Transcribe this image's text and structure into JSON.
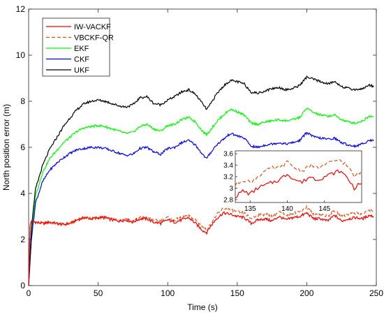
{
  "chart_data": {
    "type": "line",
    "title": "",
    "xlabel": "Time (s)",
    "ylabel": "North position error (m)",
    "xlim": [
      0,
      250
    ],
    "ylim": [
      0,
      12
    ],
    "xticks": [
      0,
      50,
      100,
      150,
      200,
      250
    ],
    "yticks": [
      0,
      2,
      4,
      6,
      8,
      10,
      12
    ],
    "grid": false,
    "legend": "top-left",
    "series": [
      {
        "name": "IW-VACKF",
        "color": "#ff0000",
        "dash": "solid",
        "x": [
          0,
          1,
          2,
          5,
          10,
          15,
          20,
          25,
          30,
          35,
          40,
          45,
          50,
          55,
          60,
          65,
          70,
          75,
          80,
          85,
          90,
          95,
          100,
          105,
          110,
          115,
          120,
          125,
          128,
          130,
          135,
          140,
          145,
          150,
          155,
          160,
          165,
          170,
          175,
          180,
          185,
          190,
          195,
          200,
          205,
          210,
          215,
          220,
          225,
          230,
          235,
          240,
          245,
          248
        ],
        "y": [
          0,
          2.6,
          2.8,
          2.75,
          2.7,
          2.75,
          2.7,
          2.65,
          2.7,
          2.85,
          2.95,
          2.9,
          2.95,
          2.95,
          2.85,
          2.8,
          2.85,
          2.75,
          2.9,
          2.9,
          2.75,
          2.7,
          2.85,
          2.75,
          2.85,
          2.95,
          2.7,
          2.4,
          2.3,
          2.5,
          2.9,
          3.15,
          3.1,
          3.0,
          2.95,
          2.7,
          2.85,
          2.9,
          2.8,
          3.0,
          2.85,
          2.95,
          3.0,
          3.15,
          2.9,
          2.9,
          2.8,
          3.05,
          2.8,
          2.9,
          2.95,
          2.9,
          3.05,
          3.0
        ]
      },
      {
        "name": "VBCKF-QR",
        "color": "#d95319",
        "dash": "dashed",
        "x": [
          0,
          1,
          2,
          5,
          10,
          15,
          20,
          25,
          30,
          35,
          40,
          45,
          50,
          55,
          60,
          65,
          70,
          75,
          80,
          85,
          90,
          95,
          100,
          105,
          110,
          115,
          120,
          125,
          128,
          130,
          135,
          140,
          145,
          150,
          155,
          160,
          165,
          170,
          175,
          180,
          185,
          190,
          195,
          200,
          205,
          210,
          215,
          220,
          225,
          230,
          235,
          240,
          245,
          248
        ],
        "y": [
          0,
          2.6,
          2.8,
          2.75,
          2.7,
          2.75,
          2.7,
          2.65,
          2.7,
          2.85,
          2.95,
          2.9,
          2.95,
          2.95,
          2.9,
          2.85,
          2.9,
          2.8,
          2.95,
          2.95,
          2.85,
          2.8,
          2.95,
          2.85,
          2.95,
          3.05,
          2.85,
          2.55,
          2.4,
          2.6,
          3.05,
          3.35,
          3.3,
          3.2,
          3.15,
          2.9,
          3.05,
          3.1,
          3.0,
          3.2,
          3.05,
          3.15,
          3.2,
          3.4,
          3.1,
          3.1,
          3.0,
          3.25,
          3.0,
          3.1,
          3.15,
          3.1,
          3.3,
          3.2
        ]
      },
      {
        "name": "EKF",
        "color": "#00ff00",
        "dash": "solid",
        "x": [
          0,
          2,
          5,
          10,
          15,
          20,
          25,
          30,
          35,
          40,
          45,
          50,
          55,
          60,
          65,
          70,
          75,
          80,
          85,
          90,
          95,
          100,
          105,
          110,
          115,
          120,
          125,
          128,
          130,
          135,
          140,
          145,
          150,
          155,
          160,
          165,
          170,
          175,
          180,
          185,
          190,
          195,
          200,
          205,
          210,
          215,
          220,
          225,
          230,
          235,
          240,
          245,
          248
        ],
        "y": [
          0,
          2.2,
          3.9,
          4.9,
          5.5,
          5.85,
          6.2,
          6.45,
          6.7,
          6.85,
          6.9,
          6.95,
          6.9,
          6.8,
          6.7,
          6.6,
          6.65,
          6.9,
          7.0,
          6.8,
          6.7,
          6.95,
          7.0,
          7.2,
          7.3,
          7.1,
          6.7,
          6.55,
          6.7,
          7.1,
          7.4,
          7.65,
          7.55,
          7.4,
          7.05,
          7.0,
          7.1,
          7.15,
          7.2,
          7.15,
          7.2,
          7.3,
          7.7,
          7.5,
          7.4,
          7.35,
          7.4,
          7.2,
          7.1,
          7.05,
          7.15,
          7.35,
          7.35
        ]
      },
      {
        "name": "CKF",
        "color": "#0000ff",
        "dash": "solid",
        "x": [
          0,
          2,
          5,
          10,
          15,
          20,
          25,
          30,
          35,
          40,
          45,
          50,
          55,
          60,
          65,
          70,
          75,
          80,
          85,
          90,
          95,
          100,
          105,
          110,
          115,
          120,
          125,
          128,
          130,
          135,
          140,
          145,
          150,
          155,
          160,
          165,
          170,
          175,
          180,
          185,
          190,
          195,
          200,
          205,
          210,
          215,
          220,
          225,
          230,
          235,
          240,
          245,
          248
        ],
        "y": [
          0,
          2.0,
          3.6,
          4.5,
          5.0,
          5.3,
          5.55,
          5.75,
          5.9,
          5.95,
          6.0,
          6.0,
          5.95,
          5.85,
          5.75,
          5.65,
          5.7,
          5.95,
          6.0,
          5.8,
          5.7,
          5.95,
          6.0,
          6.2,
          6.3,
          6.1,
          5.7,
          5.5,
          5.7,
          6.1,
          6.35,
          6.6,
          6.5,
          6.4,
          6.05,
          6.0,
          6.1,
          6.15,
          6.2,
          6.15,
          6.2,
          6.3,
          6.65,
          6.45,
          6.4,
          6.35,
          6.4,
          6.2,
          6.1,
          6.05,
          6.15,
          6.3,
          6.3
        ]
      },
      {
        "name": "UKF",
        "color": "#000000",
        "dash": "solid",
        "x": [
          0,
          2,
          5,
          10,
          15,
          20,
          25,
          30,
          35,
          40,
          45,
          50,
          55,
          60,
          65,
          70,
          75,
          80,
          85,
          90,
          95,
          100,
          105,
          110,
          115,
          120,
          125,
          128,
          130,
          135,
          140,
          145,
          150,
          155,
          160,
          165,
          170,
          175,
          180,
          185,
          190,
          195,
          200,
          205,
          210,
          215,
          220,
          225,
          230,
          235,
          240,
          245,
          248
        ],
        "y": [
          0,
          2.5,
          4.2,
          5.2,
          5.9,
          6.4,
          6.9,
          7.3,
          7.65,
          7.9,
          8.0,
          8.05,
          8.0,
          7.9,
          7.8,
          7.75,
          7.85,
          8.15,
          8.2,
          7.9,
          7.85,
          8.05,
          8.2,
          8.4,
          8.5,
          8.3,
          7.9,
          7.65,
          7.8,
          8.3,
          8.65,
          8.9,
          8.85,
          8.75,
          8.4,
          8.35,
          8.45,
          8.55,
          8.6,
          8.5,
          8.55,
          8.7,
          9.05,
          8.95,
          8.85,
          8.75,
          8.85,
          8.65,
          8.55,
          8.5,
          8.55,
          8.7,
          8.65
        ]
      }
    ],
    "inset": {
      "type": "line",
      "xlim": [
        133,
        150
      ],
      "ylim": [
        2.75,
        3.65
      ],
      "xticks": [
        135,
        140,
        145
      ],
      "yticks": [
        2.8,
        3,
        3.2,
        3.4,
        3.6
      ],
      "yticklabels": [
        "2.8",
        "3",
        "3.2",
        "3.4",
        "3.6"
      ],
      "series": [
        {
          "name": "IW-VACKF",
          "color": "#ff0000",
          "dash": "solid",
          "x": [
            133,
            134,
            135,
            136,
            137,
            138,
            139,
            140,
            141,
            142,
            143,
            144,
            145,
            146,
            147,
            148,
            149,
            150
          ],
          "y": [
            2.85,
            2.95,
            2.9,
            3.0,
            3.05,
            3.1,
            3.15,
            3.25,
            3.15,
            3.1,
            3.2,
            3.15,
            3.2,
            3.25,
            3.3,
            3.2,
            3.0,
            3.1
          ]
        },
        {
          "name": "VBCKF-QR",
          "color": "#d95319",
          "dash": "dashed",
          "x": [
            133,
            134,
            135,
            136,
            137,
            138,
            139,
            140,
            141,
            142,
            143,
            144,
            145,
            146,
            147,
            148,
            149,
            150
          ],
          "y": [
            3.05,
            3.15,
            3.1,
            3.2,
            3.3,
            3.35,
            3.35,
            3.45,
            3.35,
            3.3,
            3.4,
            3.35,
            3.4,
            3.45,
            3.5,
            3.4,
            3.2,
            3.3
          ]
        }
      ]
    }
  }
}
